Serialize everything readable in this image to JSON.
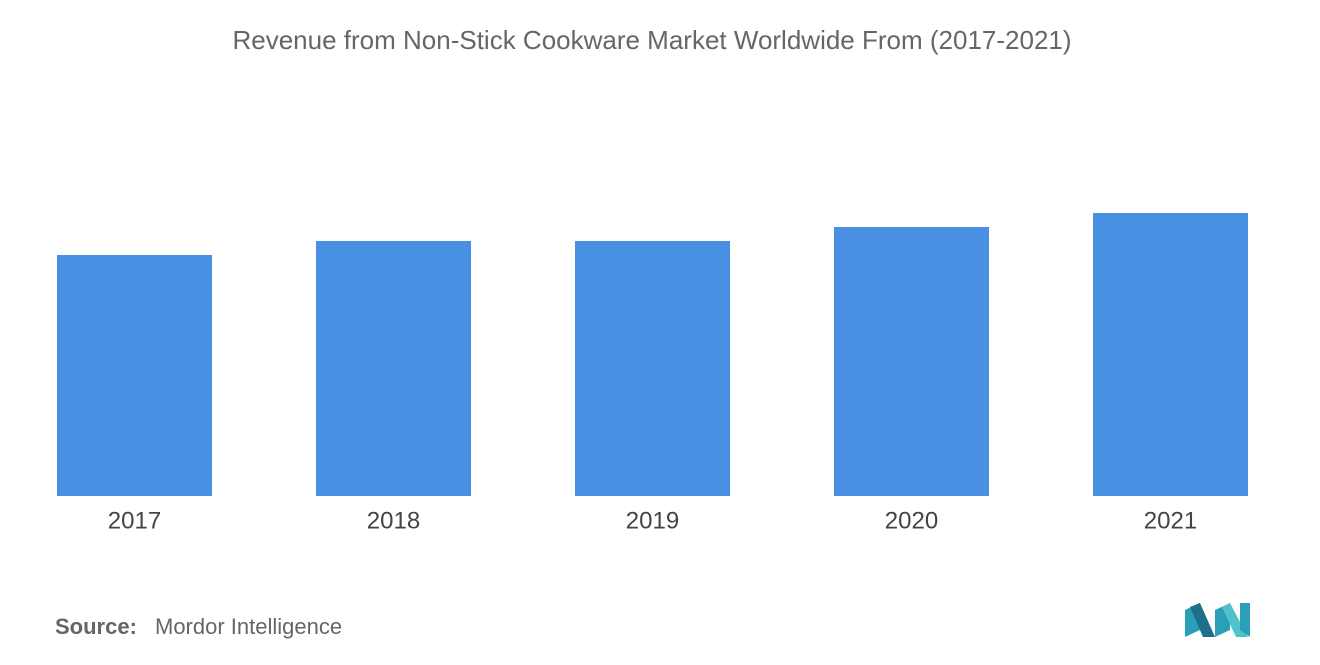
{
  "chart_data": {
    "type": "bar",
    "title": "Revenue from Non-Stick Cookware Market Worldwide From (2017-2021)",
    "categories": [
      "2017",
      "2018",
      "2019",
      "2020",
      "2021"
    ],
    "values": [
      241,
      255,
      255,
      269,
      283
    ],
    "color": "#4a90e2",
    "ylim": [
      0,
      300
    ],
    "grid": false
  },
  "source": {
    "label": "Source:",
    "text": "Mordor Intelligence"
  }
}
